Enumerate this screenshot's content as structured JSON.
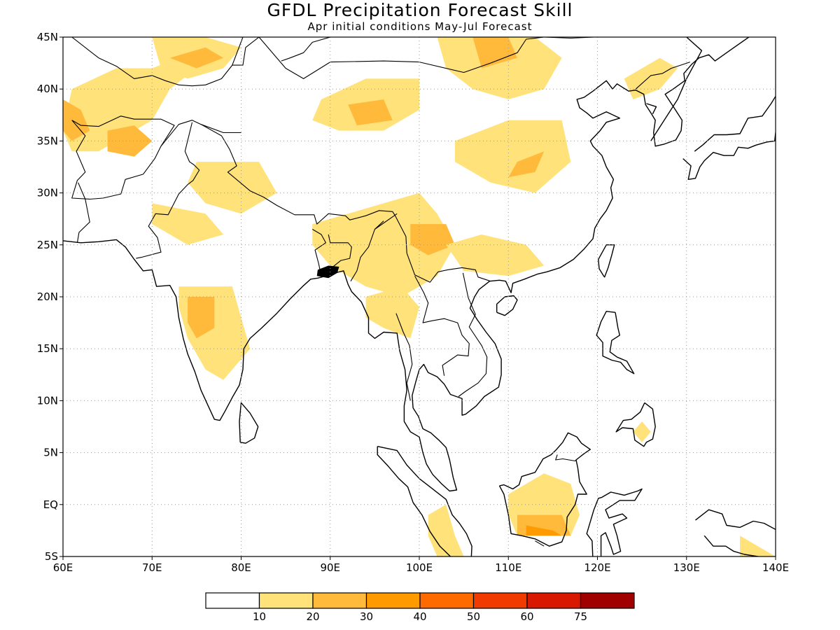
{
  "title": "GFDL Precipitation Forecast Skill",
  "subtitle": "Apr initial conditions  May-Jul Forecast",
  "map": {
    "lon_range": [
      60,
      140
    ],
    "lat_range": [
      -5,
      45
    ],
    "lon_ticks": [
      "60E",
      "70E",
      "80E",
      "90E",
      "100E",
      "110E",
      "120E",
      "130E",
      "140E"
    ],
    "lat_ticks": [
      "45N",
      "40N",
      "35N",
      "30N",
      "25N",
      "20N",
      "15N",
      "10N",
      "5N",
      "EQ",
      "5S"
    ],
    "grid": "dotted"
  },
  "colorbar": {
    "labels": [
      "10",
      "20",
      "30",
      "40",
      "50",
      "60",
      "75"
    ],
    "colors": [
      "#ffffff",
      "#ffe27a",
      "#ffba3c",
      "#ff9a00",
      "#ff6a00",
      "#f03a00",
      "#d81800",
      "#a00000"
    ]
  },
  "skill_regions": [
    {
      "level": 1,
      "points": [
        [
          61,
          40
        ],
        [
          66,
          42
        ],
        [
          70,
          42
        ],
        [
          73,
          43
        ],
        [
          75,
          42
        ],
        [
          72,
          40
        ],
        [
          70,
          37
        ],
        [
          68,
          36
        ],
        [
          66,
          35
        ],
        [
          64,
          34
        ],
        [
          61,
          34
        ],
        [
          60,
          36
        ]
      ]
    },
    {
      "level": 2,
      "points": [
        [
          60,
          39
        ],
        [
          62,
          38
        ],
        [
          63,
          36
        ],
        [
          61,
          35
        ],
        [
          60,
          36
        ]
      ]
    },
    {
      "level": 2,
      "points": [
        [
          65,
          36
        ],
        [
          68,
          36.5
        ],
        [
          70,
          35
        ],
        [
          68,
          33.5
        ],
        [
          65,
          34
        ]
      ]
    },
    {
      "level": 1,
      "points": [
        [
          70,
          45
        ],
        [
          76,
          45
        ],
        [
          80,
          44
        ],
        [
          78,
          42
        ],
        [
          74,
          41
        ],
        [
          71,
          42
        ]
      ]
    },
    {
      "level": 2,
      "points": [
        [
          72,
          43
        ],
        [
          76,
          44
        ],
        [
          78,
          43
        ],
        [
          75,
          42
        ]
      ]
    },
    {
      "level": 1,
      "points": [
        [
          75,
          33
        ],
        [
          82,
          33
        ],
        [
          84,
          30
        ],
        [
          80,
          28
        ],
        [
          76,
          29
        ],
        [
          74,
          31
        ]
      ]
    },
    {
      "level": 1,
      "points": [
        [
          70,
          29
        ],
        [
          76,
          28
        ],
        [
          78,
          26
        ],
        [
          74,
          25
        ],
        [
          70,
          27
        ]
      ]
    },
    {
      "level": 1,
      "points": [
        [
          73,
          21
        ],
        [
          79,
          21
        ],
        [
          80,
          18
        ],
        [
          81,
          15
        ],
        [
          78,
          12
        ],
        [
          76,
          13
        ],
        [
          74,
          16
        ],
        [
          73,
          19
        ]
      ]
    },
    {
      "level": 2,
      "points": [
        [
          74,
          20
        ],
        [
          77,
          20
        ],
        [
          77,
          17
        ],
        [
          75,
          16
        ],
        [
          74,
          17.5
        ]
      ]
    },
    {
      "level": 1,
      "points": [
        [
          89,
          39
        ],
        [
          94,
          41
        ],
        [
          100,
          41
        ],
        [
          100,
          38
        ],
        [
          96,
          36
        ],
        [
          91,
          36
        ],
        [
          88,
          37
        ]
      ]
    },
    {
      "level": 2,
      "points": [
        [
          92,
          38.5
        ],
        [
          96,
          39
        ],
        [
          97,
          37
        ],
        [
          93,
          36.5
        ]
      ]
    },
    {
      "level": 1,
      "points": [
        [
          102,
          45
        ],
        [
          113,
          45
        ],
        [
          116,
          43
        ],
        [
          114,
          40
        ],
        [
          110,
          39
        ],
        [
          106,
          40
        ],
        [
          103,
          42
        ]
      ]
    },
    {
      "level": 2,
      "points": [
        [
          106,
          45
        ],
        [
          110,
          45
        ],
        [
          111,
          43
        ],
        [
          107,
          42
        ]
      ]
    },
    {
      "level": 1,
      "points": [
        [
          104,
          35
        ],
        [
          110,
          37
        ],
        [
          116,
          37
        ],
        [
          117,
          33
        ],
        [
          113,
          30
        ],
        [
          108,
          31
        ],
        [
          104,
          33
        ]
      ]
    },
    {
      "level": 2,
      "points": [
        [
          111,
          33
        ],
        [
          114,
          34
        ],
        [
          113,
          32
        ],
        [
          110,
          31.5
        ]
      ]
    },
    {
      "level": 1,
      "points": [
        [
          88,
          27
        ],
        [
          92,
          28
        ],
        [
          96,
          29
        ],
        [
          100,
          30
        ],
        [
          102,
          28
        ],
        [
          104,
          25
        ],
        [
          102,
          22
        ],
        [
          98,
          20
        ],
        [
          94,
          21
        ],
        [
          90,
          23
        ],
        [
          88,
          25
        ]
      ]
    },
    {
      "level": 2,
      "points": [
        [
          99,
          27
        ],
        [
          103,
          27
        ],
        [
          104,
          25
        ],
        [
          101,
          24
        ],
        [
          99,
          25
        ]
      ]
    },
    {
      "level": 1,
      "points": [
        [
          94,
          20
        ],
        [
          98,
          21
        ],
        [
          100,
          19
        ],
        [
          99,
          16
        ],
        [
          96,
          17
        ],
        [
          94,
          18
        ]
      ]
    },
    {
      "level": 1,
      "points": [
        [
          103,
          25
        ],
        [
          107,
          26
        ],
        [
          112,
          25
        ],
        [
          114,
          23
        ],
        [
          110,
          22
        ],
        [
          105,
          22.5
        ]
      ]
    },
    {
      "level": 1,
      "points": [
        [
          123,
          41
        ],
        [
          127,
          43
        ],
        [
          129,
          42
        ],
        [
          127,
          40
        ],
        [
          124,
          39
        ]
      ]
    },
    {
      "level": 1,
      "points": [
        [
          101,
          -1
        ],
        [
          103,
          0
        ],
        [
          104,
          -3
        ],
        [
          105,
          -5
        ],
        [
          102,
          -5
        ],
        [
          101,
          -3
        ]
      ]
    },
    {
      "level": 1,
      "points": [
        [
          110,
          1
        ],
        [
          114,
          3
        ],
        [
          117,
          2
        ],
        [
          118,
          -1
        ],
        [
          117,
          -3
        ],
        [
          115,
          -3
        ],
        [
          111,
          -3
        ],
        [
          110,
          -1
        ]
      ]
    },
    {
      "level": 2,
      "points": [
        [
          111,
          -1
        ],
        [
          116,
          -1
        ],
        [
          117,
          -3
        ],
        [
          111,
          -3
        ]
      ]
    },
    {
      "level": 3,
      "points": [
        [
          112,
          -2
        ],
        [
          115,
          -2.5
        ],
        [
          116,
          -3
        ],
        [
          112,
          -3
        ]
      ]
    },
    {
      "level": 1,
      "points": [
        [
          136,
          -3
        ],
        [
          138,
          -4
        ],
        [
          140,
          -5
        ],
        [
          136,
          -5
        ]
      ]
    },
    {
      "level": 1,
      "points": [
        [
          125,
          8
        ],
        [
          126,
          7
        ],
        [
          125,
          6
        ],
        [
          124,
          7
        ]
      ]
    }
  ]
}
